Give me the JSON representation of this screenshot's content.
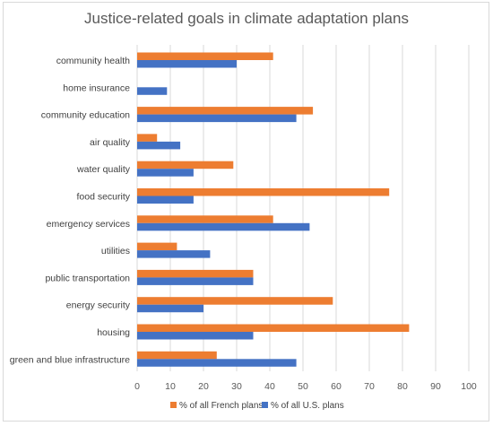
{
  "chart_data": {
    "type": "bar",
    "orientation": "horizontal",
    "title": "Justice-related goals in climate adaptation plans",
    "categories": [
      "community health",
      "home insurance",
      "community education",
      "air quality",
      "water quality",
      "food security",
      "emergency services",
      "utilities",
      "public transportation",
      "energy security",
      "housing",
      "green and blue infrastructure"
    ],
    "series": [
      {
        "name": "% of all French plans",
        "color": "#ED7D31",
        "values": [
          41,
          0,
          53,
          6,
          29,
          76,
          41,
          12,
          35,
          59,
          82,
          24
        ]
      },
      {
        "name": "% of all U.S. plans",
        "color": "#4472C4",
        "values": [
          30,
          9,
          48,
          13,
          17,
          17,
          52,
          22,
          35,
          20,
          35,
          48
        ]
      }
    ],
    "xlim": [
      0,
      100
    ],
    "xticks": [
      0,
      10,
      20,
      30,
      40,
      50,
      60,
      70,
      80,
      90,
      100
    ],
    "grid": true,
    "legend_position": "bottom"
  }
}
